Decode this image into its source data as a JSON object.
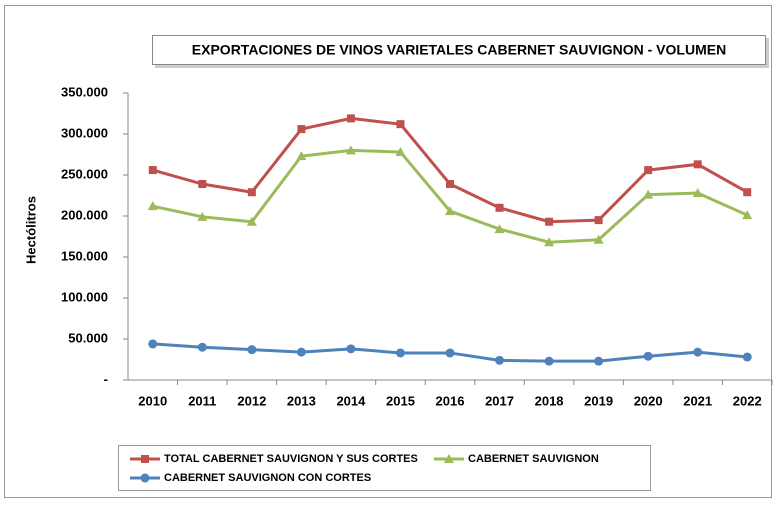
{
  "chart_data": {
    "type": "line",
    "title": "EXPORTACIONES DE VINOS VARIETALES CABERNET SAUVIGNON - VOLUMEN",
    "ylabel": "Hectólitros",
    "categories": [
      "2010",
      "2011",
      "2012",
      "2013",
      "2014",
      "2015",
      "2016",
      "2017",
      "2018",
      "2019",
      "2020",
      "2021",
      "2022"
    ],
    "series": [
      {
        "name": "TOTAL CABERNET SAUVIGNON Y SUS CORTES",
        "color": "#c0504d",
        "marker": "square",
        "values": [
          256000,
          239000,
          229000,
          306000,
          319000,
          312000,
          239000,
          210000,
          193000,
          195000,
          256000,
          263000,
          229000
        ]
      },
      {
        "name": "CABERNET SAUVIGNON",
        "color": "#9bbb59",
        "marker": "triangle",
        "values": [
          212000,
          199000,
          193000,
          273000,
          280000,
          278000,
          206000,
          184000,
          168000,
          171000,
          226000,
          228000,
          201000
        ]
      },
      {
        "name": "CABERNET SAUVIGNON CON CORTES",
        "color": "#4f81bd",
        "marker": "circle",
        "values": [
          44000,
          40000,
          37000,
          34000,
          38000,
          33000,
          33000,
          24000,
          23000,
          23000,
          29000,
          34000,
          28000
        ]
      }
    ],
    "ylim": [
      0,
      350000
    ],
    "yticks": [
      {
        "value": 0,
        "label": "-"
      },
      {
        "value": 50000,
        "label": "50.000"
      },
      {
        "value": 100000,
        "label": "100.000"
      },
      {
        "value": 150000,
        "label": "150.000"
      },
      {
        "value": 200000,
        "label": "200.000"
      },
      {
        "value": 250000,
        "label": "250.000"
      },
      {
        "value": 300000,
        "label": "300.000"
      },
      {
        "value": 350000,
        "label": "350.000"
      }
    ],
    "grid": false
  }
}
